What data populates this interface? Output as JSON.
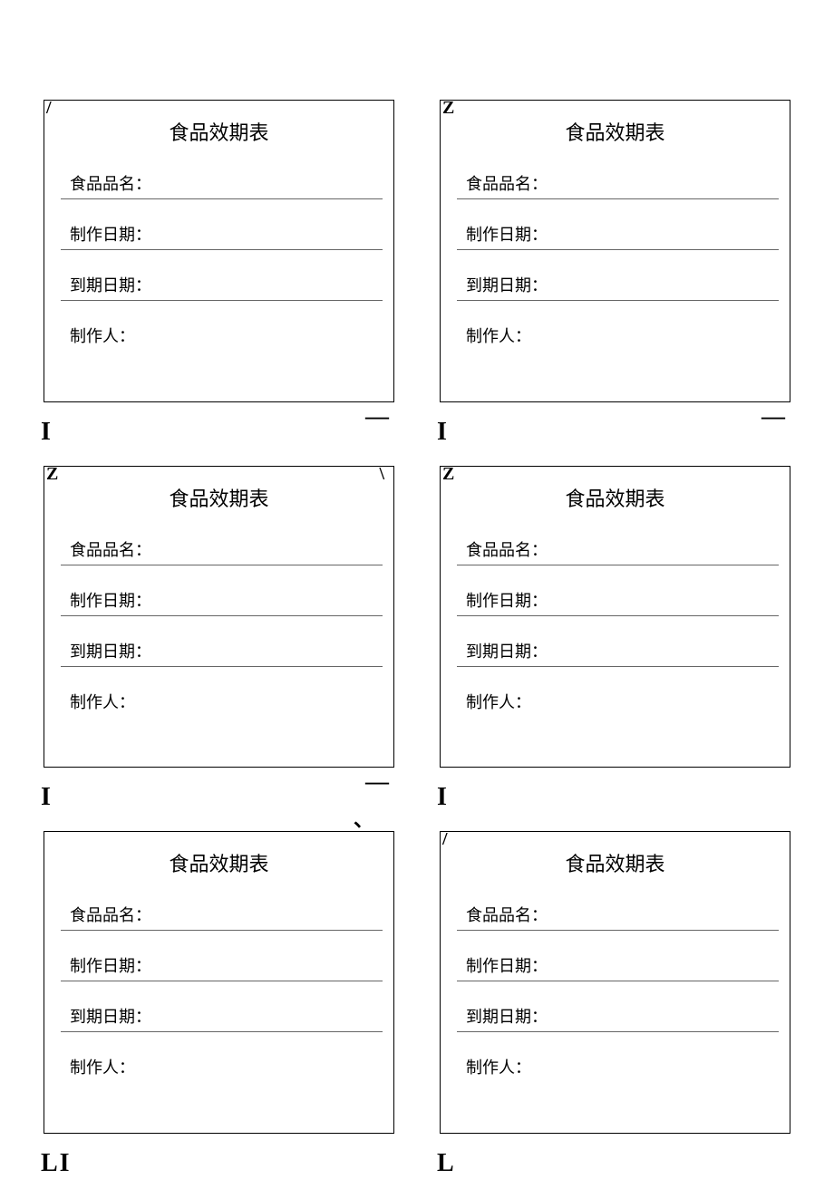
{
  "card": {
    "title": "食品效期表",
    "fields": [
      "食品品名：",
      "制作日期：",
      "到期日期：",
      "制作人："
    ]
  },
  "marks": {
    "card0": {
      "tl": "/",
      "bl": "I",
      "br": "—"
    },
    "card1": {
      "tl": "Z",
      "bl": "I",
      "br": "—"
    },
    "card2": {
      "tl": "Z",
      "tr": "\\",
      "bl": "I",
      "br": "—",
      "br2": "、"
    },
    "card3": {
      "tl": "Z",
      "bl": "I"
    },
    "card4": {
      "bl": "LI"
    },
    "card5": {
      "tl": "/",
      "bl": "L"
    }
  },
  "styling": {
    "background_color": "#ffffff",
    "border_color": "#000000",
    "line_color": "#666666",
    "text_color": "#000000",
    "title_fontsize": 22,
    "label_fontsize": 18,
    "font_family": "SimSun",
    "grid_columns": 2,
    "grid_rows": 3,
    "card_count": 6
  }
}
